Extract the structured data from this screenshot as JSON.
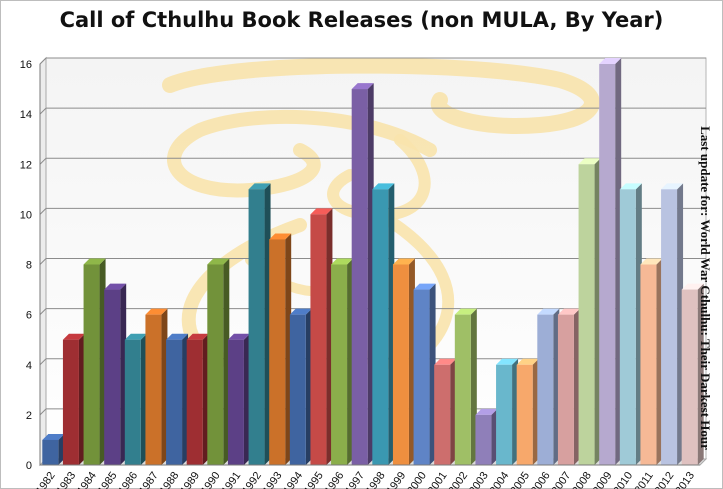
{
  "chart_data": {
    "type": "bar",
    "title": "Call of Cthulhu Book Releases (non MULA, By Year)",
    "annotation": "Last update for: World War Cthulhu: Their Darkest Hour",
    "xlabel": "",
    "ylabel": "",
    "ylim": [
      0,
      16
    ],
    "yticks": [
      "0",
      "2",
      "4",
      "6",
      "8",
      "10",
      "12",
      "14",
      "16"
    ],
    "grid": true,
    "legend": "none",
    "categories": [
      "1982",
      "1983",
      "1984",
      "1985",
      "1986",
      "1987",
      "1988",
      "1989",
      "1990",
      "1991",
      "1992",
      "1993",
      "1994",
      "1995",
      "1996",
      "1997",
      "1998",
      "1999",
      "2000",
      "2001",
      "2002",
      "2003",
      "2004",
      "2005",
      "2006",
      "2007",
      "2008",
      "2009",
      "2010",
      "2011",
      "2012",
      "2013"
    ],
    "values": [
      1,
      5,
      8,
      7,
      5,
      6,
      5,
      5,
      8,
      5,
      11,
      9,
      6,
      10,
      8,
      15,
      11,
      8,
      7,
      4,
      6,
      2,
      4,
      4,
      6,
      6,
      12,
      16,
      11,
      8,
      11,
      7
    ],
    "colors": [
      "#3f64a0",
      "#9e2e32",
      "#72923a",
      "#5c4086",
      "#327f8e",
      "#cb7129",
      "#3f64a0",
      "#9e2e32",
      "#72923a",
      "#5c4086",
      "#327f8e",
      "#cb7129",
      "#3f64a0",
      "#c54a47",
      "#8bae4b",
      "#7a5fa5",
      "#3a98b1",
      "#ee8f3f",
      "#5f84c6",
      "#cd6e6d",
      "#9fbf66",
      "#8f7fb9",
      "#69b7cc",
      "#f7a86b",
      "#9daed6",
      "#d7a09f",
      "#bdd39d",
      "#b6a9cf",
      "#9fcad7",
      "#f6b996",
      "#b9c3e1",
      "#dfc1c0"
    ]
  }
}
